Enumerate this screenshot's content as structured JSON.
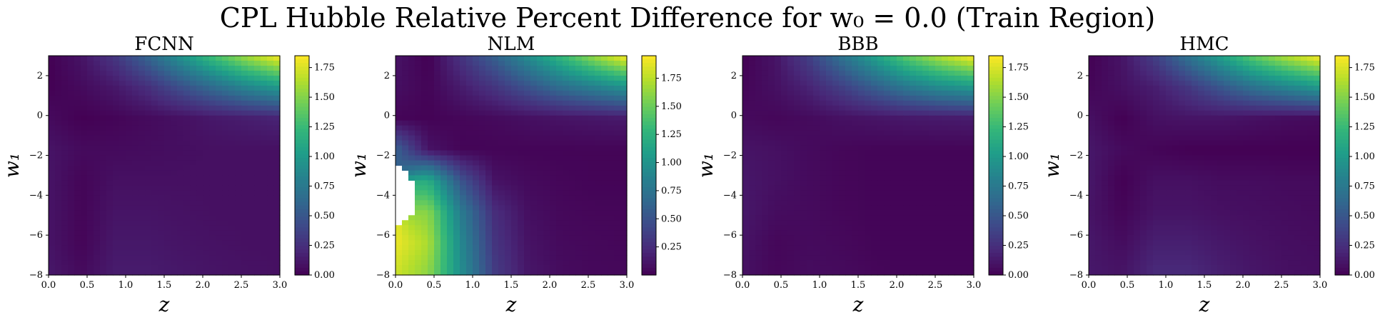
{
  "figure": {
    "title": "CPL Hubble Relative Percent Difference for w₀ = 0.0 (Train Region)"
  },
  "colormap": {
    "name": "viridis",
    "stops": [
      "#440154",
      "#482878",
      "#3e4989",
      "#31688e",
      "#26828e",
      "#1f9e89",
      "#35b779",
      "#6ece58",
      "#b5de2b",
      "#fde725"
    ]
  },
  "chart_data": [
    {
      "type": "heatmap",
      "title": "FCNN",
      "xlabel": "z",
      "ylabel": "w₁",
      "xlim": [
        0.0,
        3.0
      ],
      "ylim": [
        -8,
        3
      ],
      "xticks": [
        "0.0",
        "0.5",
        "1.0",
        "1.5",
        "2.0",
        "2.5",
        "3.0"
      ],
      "yticks": [
        "−8",
        "−6",
        "−4",
        "−2",
        "0",
        "2"
      ],
      "colorbar": {
        "min": 0.0,
        "max": 1.85,
        "ticks": [
          "0.00",
          "0.25",
          "0.50",
          "0.75",
          "1.00",
          "1.25",
          "1.50",
          "1.75"
        ]
      },
      "grid": [
        [
          0.0,
          0.1,
          0.3,
          0.6,
          0.95,
          1.3,
          1.6,
          1.85
        ],
        [
          0.0,
          0.05,
          0.12,
          0.25,
          0.45,
          0.65,
          0.85,
          1.0
        ],
        [
          0.05,
          0.0,
          0.02,
          0.05,
          0.08,
          0.12,
          0.15,
          0.18
        ],
        [
          0.1,
          0.05,
          0.05,
          0.06,
          0.07,
          0.08,
          0.08,
          0.08
        ],
        [
          0.1,
          0.02,
          0.08,
          0.08,
          0.08,
          0.08,
          0.08,
          0.08
        ],
        [
          0.1,
          0.02,
          0.1,
          0.1,
          0.09,
          0.08,
          0.08,
          0.08
        ],
        [
          0.1,
          0.02,
          0.12,
          0.12,
          0.1,
          0.09,
          0.08,
          0.08
        ],
        [
          0.12,
          0.05,
          0.14,
          0.14,
          0.12,
          0.1,
          0.09,
          0.08
        ]
      ]
    },
    {
      "type": "heatmap",
      "title": "NLM",
      "xlabel": "z",
      "ylabel": "w₁",
      "xlim": [
        0.0,
        3.0
      ],
      "ylim": [
        -8,
        3
      ],
      "xticks": [
        "0.0",
        "0.5",
        "1.0",
        "1.5",
        "2.0",
        "2.5",
        "3.0"
      ],
      "yticks": [
        "−8",
        "−6",
        "−4",
        "−2",
        "0",
        "2"
      ],
      "colorbar": {
        "min": 0.0,
        "max": 1.95,
        "ticks": [
          "0.25",
          "0.50",
          "0.75",
          "1.00",
          "1.25",
          "1.50",
          "1.75"
        ]
      },
      "grid": [
        [
          0.1,
          0.0,
          0.3,
          0.6,
          0.95,
          1.3,
          1.65,
          1.95
        ],
        [
          0.08,
          0.02,
          0.15,
          0.3,
          0.5,
          0.7,
          0.85,
          1.0
        ],
        [
          0.02,
          0.01,
          0.03,
          0.05,
          0.08,
          0.1,
          0.12,
          0.14
        ],
        [
          0.6,
          0.1,
          0.02,
          0.02,
          0.02,
          0.02,
          0.02,
          0.02
        ],
        [
          null,
          1.2,
          0.5,
          0.1,
          0.05,
          0.03,
          0.02,
          0.02
        ],
        [
          null,
          1.6,
          0.8,
          0.25,
          0.08,
          0.04,
          0.03,
          0.03
        ],
        [
          1.9,
          1.7,
          0.9,
          0.3,
          0.1,
          0.05,
          0.04,
          0.03
        ],
        [
          1.8,
          1.6,
          0.95,
          0.35,
          0.12,
          0.06,
          0.04,
          0.04
        ]
      ]
    },
    {
      "type": "heatmap",
      "title": "BBB",
      "xlabel": "z",
      "ylabel": "w₁",
      "xlim": [
        0.0,
        3.0
      ],
      "ylim": [
        -8,
        3
      ],
      "xticks": [
        "0.0",
        "0.5",
        "1.0",
        "1.5",
        "2.0",
        "2.5",
        "3.0"
      ],
      "yticks": [
        "−8",
        "−6",
        "−4",
        "−2",
        "0",
        "2"
      ],
      "colorbar": {
        "min": 0.0,
        "max": 1.85,
        "ticks": [
          "0.00",
          "0.25",
          "0.50",
          "0.75",
          "1.00",
          "1.25",
          "1.50",
          "1.75"
        ]
      },
      "grid": [
        [
          0.0,
          0.1,
          0.35,
          0.7,
          1.05,
          1.4,
          1.65,
          1.85
        ],
        [
          0.02,
          0.08,
          0.18,
          0.35,
          0.55,
          0.75,
          0.9,
          1.0
        ],
        [
          0.05,
          0.03,
          0.05,
          0.08,
          0.1,
          0.12,
          0.13,
          0.14
        ],
        [
          0.1,
          0.08,
          0.05,
          0.03,
          0.02,
          0.02,
          0.02,
          0.02
        ],
        [
          0.12,
          0.08,
          0.05,
          0.03,
          0.02,
          0.02,
          0.02,
          0.02
        ],
        [
          0.12,
          0.06,
          0.05,
          0.03,
          0.02,
          0.02,
          0.02,
          0.02
        ],
        [
          0.1,
          0.03,
          0.05,
          0.04,
          0.02,
          0.02,
          0.02,
          0.02
        ],
        [
          0.08,
          0.03,
          0.06,
          0.05,
          0.03,
          0.02,
          0.02,
          0.02
        ]
      ]
    },
    {
      "type": "heatmap",
      "title": "HMC",
      "xlabel": "z",
      "ylabel": "w₁",
      "xlim": [
        0.0,
        3.0
      ],
      "ylim": [
        -8,
        3
      ],
      "xticks": [
        "0.0",
        "0.5",
        "1.0",
        "1.5",
        "2.0",
        "2.5",
        "3.0"
      ],
      "yticks": [
        "−8",
        "−6",
        "−4",
        "−2",
        "0",
        "2"
      ],
      "colorbar": {
        "min": 0.0,
        "max": 1.85,
        "ticks": [
          "0.00",
          "0.25",
          "0.50",
          "0.75",
          "1.00",
          "1.25",
          "1.50",
          "1.75"
        ]
      },
      "grid": [
        [
          0.0,
          0.1,
          0.35,
          0.7,
          1.05,
          1.4,
          1.65,
          1.85
        ],
        [
          0.02,
          0.08,
          0.15,
          0.3,
          0.5,
          0.7,
          0.85,
          1.0
        ],
        [
          0.08,
          0.0,
          0.08,
          0.1,
          0.1,
          0.08,
          0.06,
          0.05
        ],
        [
          0.12,
          0.05,
          0.02,
          0.0,
          0.0,
          0.0,
          0.0,
          0.0
        ],
        [
          0.12,
          0.0,
          0.08,
          0.08,
          0.06,
          0.06,
          0.05,
          0.05
        ],
        [
          0.1,
          0.02,
          0.1,
          0.1,
          0.08,
          0.07,
          0.06,
          0.05
        ],
        [
          0.12,
          0.06,
          0.16,
          0.16,
          0.12,
          0.09,
          0.07,
          0.06
        ],
        [
          0.12,
          0.1,
          0.22,
          0.22,
          0.16,
          0.11,
          0.08,
          0.07
        ]
      ]
    }
  ]
}
